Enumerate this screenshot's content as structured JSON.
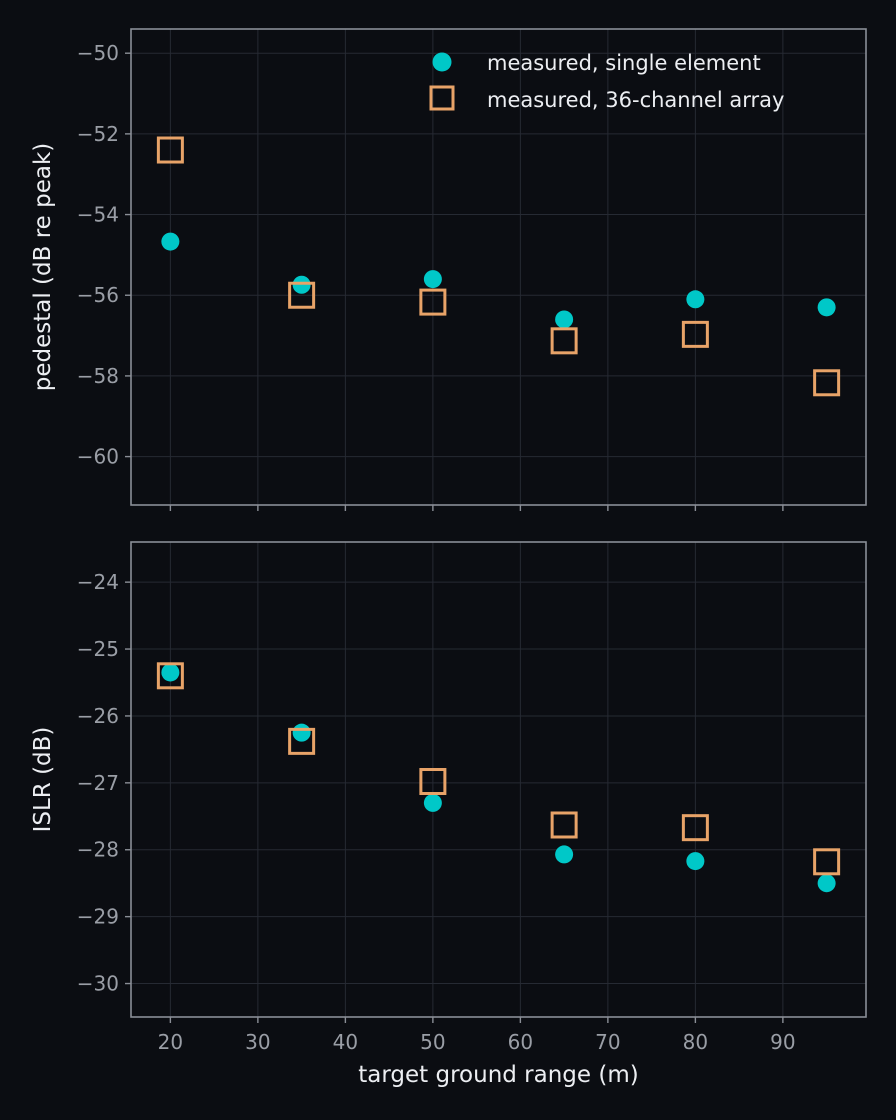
{
  "colors": {
    "background": "#0b0d12",
    "single": "#00c8c8",
    "array": "#e8a368"
  },
  "chart_data": {
    "type": "scatter",
    "xlabel": "target ground range (m)",
    "x_ticks": [
      20,
      30,
      40,
      50,
      60,
      70,
      80,
      90
    ],
    "xlim": [
      15.5,
      99.5
    ],
    "legend": {
      "placement": "top-right",
      "entries": [
        "measured, single element",
        "measured, 36-channel array"
      ]
    },
    "panels": [
      {
        "ylabel": "pedestal (dB re peak)",
        "ylim": [
          -61.2,
          -49.4
        ],
        "y_ticks": [
          -50,
          -52,
          -54,
          -56,
          -58,
          -60
        ],
        "series": [
          {
            "name": "measured, single element",
            "marker": "circle",
            "x": [
              20,
              35,
              50,
              65,
              80,
              95
            ],
            "y": [
              -54.67,
              -55.74,
              -55.6,
              -56.6,
              -56.1,
              -56.3
            ]
          },
          {
            "name": "measured, 36-channel array",
            "marker": "square",
            "x": [
              20,
              35,
              50,
              65,
              80,
              95
            ],
            "y": [
              -52.4,
              -56.0,
              -56.17,
              -57.13,
              -56.97,
              -58.17
            ]
          }
        ]
      },
      {
        "ylabel": "ISLR (dB)",
        "ylim": [
          -30.5,
          -23.4
        ],
        "y_ticks": [
          -24,
          -25,
          -26,
          -27,
          -28,
          -29,
          -30
        ],
        "series": [
          {
            "name": "measured, single element",
            "marker": "circle",
            "x": [
              20,
              35,
              50,
              65,
              80,
              95
            ],
            "y": [
              -25.35,
              -26.25,
              -27.3,
              -28.07,
              -28.17,
              -28.5
            ]
          },
          {
            "name": "measured, 36-channel array",
            "marker": "square",
            "x": [
              20,
              35,
              50,
              65,
              80,
              95
            ],
            "y": [
              -25.4,
              -26.38,
              -26.98,
              -27.63,
              -27.67,
              -28.18
            ]
          }
        ]
      }
    ]
  }
}
